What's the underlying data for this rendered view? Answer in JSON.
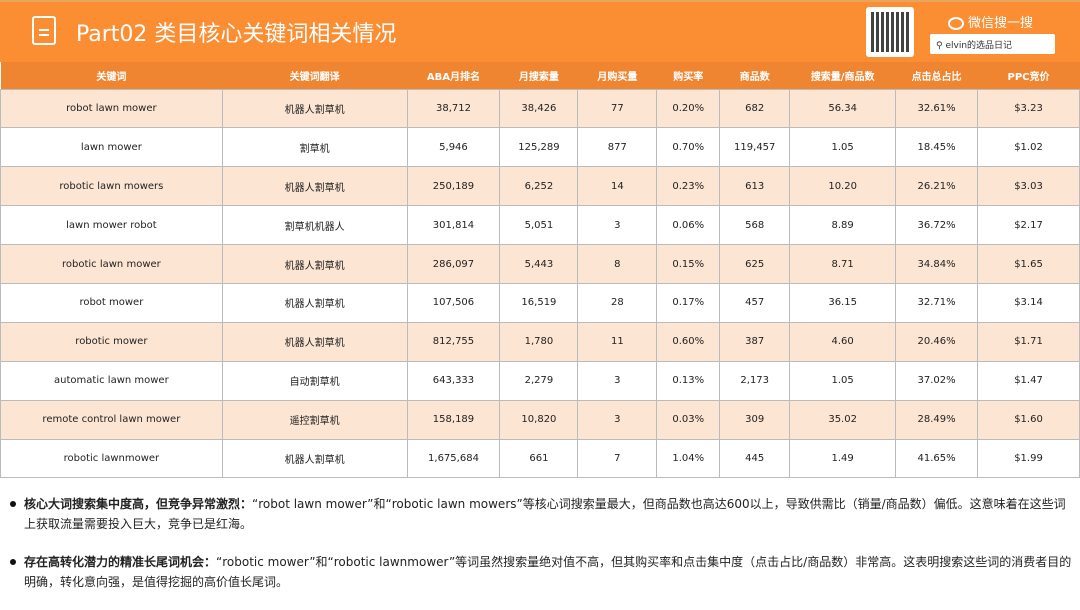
{
  "header": {
    "title": "Part02 类目核心关键词相关情况",
    "wechat_label": "微信搜一搜",
    "search_value": "elvin的选品日记"
  },
  "table": {
    "columns": [
      "关键词",
      "关键词翻译",
      "ABA月排名",
      "月搜索量",
      "月购买量",
      "购买率",
      "商品数",
      "搜索量/商品数",
      "点击总占比",
      "PPC竞价"
    ],
    "rows": [
      [
        "robot lawn mower",
        "机器人割草机",
        "38,712",
        "38,426",
        "77",
        "0.20%",
        "682",
        "56.34",
        "32.61%",
        "$3.23"
      ],
      [
        "lawn mower",
        "割草机",
        "5,946",
        "125,289",
        "877",
        "0.70%",
        "119,457",
        "1.05",
        "18.45%",
        "$1.02"
      ],
      [
        "robotic lawn mowers",
        "机器人割草机",
        "250,189",
        "6,252",
        "14",
        "0.23%",
        "613",
        "10.20",
        "26.21%",
        "$3.03"
      ],
      [
        "lawn mower robot",
        "割草机机器人",
        "301,814",
        "5,051",
        "3",
        "0.06%",
        "568",
        "8.89",
        "36.72%",
        "$2.17"
      ],
      [
        "robotic lawn mower",
        "机器人割草机",
        "286,097",
        "5,443",
        "8",
        "0.15%",
        "625",
        "8.71",
        "34.84%",
        "$1.65"
      ],
      [
        "robot mower",
        "机器人割草机",
        "107,506",
        "16,519",
        "28",
        "0.17%",
        "457",
        "36.15",
        "32.71%",
        "$3.14"
      ],
      [
        "robotic mower",
        "机器人割草机",
        "812,755",
        "1,780",
        "11",
        "0.60%",
        "387",
        "4.60",
        "20.46%",
        "$1.71"
      ],
      [
        "automatic lawn mower",
        "自动割草机",
        "643,333",
        "2,279",
        "3",
        "0.13%",
        "2,173",
        "1.05",
        "37.02%",
        "$1.47"
      ],
      [
        "remote control lawn mower",
        "遥控割草机",
        "158,189",
        "10,820",
        "3",
        "0.03%",
        "309",
        "35.02",
        "28.49%",
        "$1.60"
      ],
      [
        "robotic lawnmower",
        "机器人割草机",
        "1,675,684",
        "661",
        "7",
        "1.04%",
        "445",
        "1.49",
        "41.65%",
        "$1.99"
      ]
    ]
  },
  "notes": [
    {
      "bold": "核心大词搜索集中度高，但竞争异常激烈：",
      "text": "“robot lawn mower”和“robotic lawn mowers”等核心词搜索量最大，但商品数也高达600以上，导致供需比（销量/商品数）偏低。这意味着在这些词上获取流量需要投入巨大，竞争已是红海。"
    },
    {
      "bold": "存在高转化潜力的精准长尾词机会：",
      "text": "“robotic mower”和“robotic lawnmower”等词虽然搜索量绝对值不高，但其购买率和点击集中度（点击占比/商品数）非常高。这表明搜索这些词的消费者目的明确，转化意向强，是值得挖掘的高价值长尾词。"
    }
  ]
}
